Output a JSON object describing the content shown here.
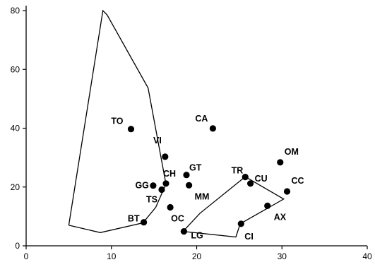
{
  "chart_data": {
    "type": "scatter",
    "title": "",
    "xlabel": "",
    "ylabel": "",
    "xlim": [
      0,
      40
    ],
    "ylim": [
      0,
      80
    ],
    "x_ticks": [
      "0",
      "10",
      "20",
      "30",
      "40"
    ],
    "y_ticks": [
      "0",
      "20",
      "40",
      "60",
      "80"
    ],
    "grid": false,
    "legend": "none",
    "points": [
      {
        "label": "TO",
        "x": 12.3,
        "y": 39.7
      },
      {
        "label": "CA",
        "x": 21.9,
        "y": 39.9
      },
      {
        "label": "VI",
        "x": 16.3,
        "y": 30.3
      },
      {
        "label": "OM",
        "x": 29.8,
        "y": 28.4
      },
      {
        "label": "GT",
        "x": 18.8,
        "y": 24.1
      },
      {
        "label": "TR",
        "x": 25.7,
        "y": 23.4
      },
      {
        "label": "GG",
        "x": 14.9,
        "y": 20.5
      },
      {
        "label": "CH",
        "x": 16.4,
        "y": 21.2
      },
      {
        "label": "TS",
        "x": 15.9,
        "y": 19.1
      },
      {
        "label": "MM",
        "x": 19.1,
        "y": 20.6
      },
      {
        "label": "CU",
        "x": 26.3,
        "y": 21.2
      },
      {
        "label": "CC",
        "x": 30.6,
        "y": 18.5
      },
      {
        "label": "OC",
        "x": 16.9,
        "y": 13.1
      },
      {
        "label": "AX",
        "x": 28.3,
        "y": 13.6
      },
      {
        "label": "BT",
        "x": 13.8,
        "y": 8.0
      },
      {
        "label": "CI",
        "x": 25.2,
        "y": 7.5
      },
      {
        "label": "LG",
        "x": 18.5,
        "y": 4.9
      }
    ],
    "polygons": [
      {
        "points": [
          [
            5.0,
            7.0
          ],
          [
            8.7,
            4.5
          ],
          [
            13.7,
            7.8
          ],
          [
            15.2,
            13.1
          ],
          [
            16.4,
            21.0
          ],
          [
            14.3,
            53.7
          ],
          [
            9.5,
            78.5
          ],
          [
            9.0,
            80.0
          ],
          [
            5.0,
            7.0
          ]
        ]
      },
      {
        "points": [
          [
            18.4,
            4.9
          ],
          [
            20.4,
            11.1
          ],
          [
            25.7,
            23.5
          ],
          [
            30.2,
            15.9
          ],
          [
            25.1,
            7.5
          ],
          [
            24.6,
            3.0
          ],
          [
            18.4,
            4.9
          ]
        ]
      }
    ],
    "point_color": "#000000",
    "line_color": "#000000"
  }
}
